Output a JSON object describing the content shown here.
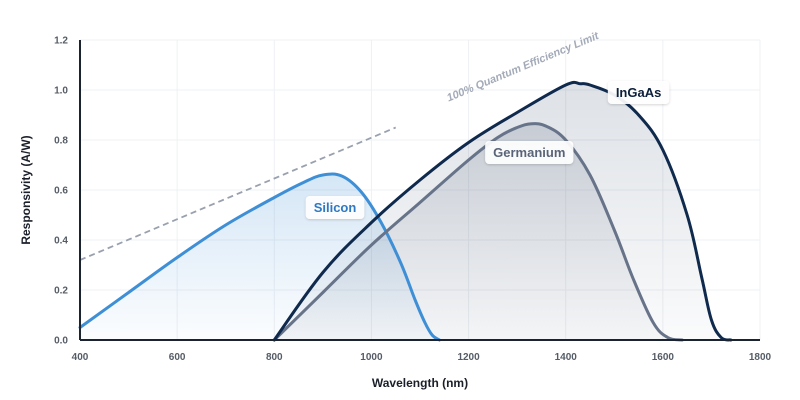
{
  "chart_data": {
    "type": "line",
    "xlabel": "Wavelength (nm)",
    "ylabel": "Responsivity (A/W)",
    "xlim": [
      400,
      1800
    ],
    "ylim": [
      0,
      1.2
    ],
    "x_ticks": [
      "400",
      "600",
      "800",
      "1000",
      "1200",
      "1400",
      "1600",
      "1800"
    ],
    "y_ticks": [
      "0.0",
      "0.2",
      "0.4",
      "0.6",
      "0.8",
      "1.0",
      "1.2"
    ],
    "grid": true,
    "reference_line": {
      "name": "100% Quantum Efficiency Limit",
      "color": "#9aa1ae",
      "x": [
        400,
        1050
      ],
      "y": [
        0.32,
        0.85
      ]
    },
    "series": [
      {
        "name": "Silicon",
        "color": "#3f8fd6",
        "label_color": "#2f78c2",
        "x": [
          400,
          500,
          600,
          700,
          800,
          860,
          900,
          940,
          980,
          1020,
          1060,
          1090,
          1110,
          1125,
          1140
        ],
        "y": [
          0.05,
          0.19,
          0.33,
          0.46,
          0.57,
          0.63,
          0.66,
          0.655,
          0.59,
          0.47,
          0.31,
          0.16,
          0.07,
          0.02,
          0.0
        ]
      },
      {
        "name": "Germanium",
        "color": "#677389",
        "label_color": "#5a6478",
        "x": [
          800,
          900,
          1000,
          1100,
          1200,
          1260,
          1300,
          1330,
          1360,
          1400,
          1450,
          1500,
          1540,
          1580,
          1610,
          1640
        ],
        "y": [
          0.0,
          0.19,
          0.38,
          0.55,
          0.72,
          0.81,
          0.85,
          0.865,
          0.855,
          0.8,
          0.66,
          0.44,
          0.24,
          0.07,
          0.01,
          0.0
        ]
      },
      {
        "name": "InGaAs",
        "color": "#0f2a4d",
        "label_color": "#0c1f3b",
        "x": [
          800,
          900,
          1000,
          1100,
          1200,
          1300,
          1400,
          1430,
          1450,
          1500,
          1550,
          1600,
          1650,
          1680,
          1700,
          1720,
          1740
        ],
        "y": [
          0.0,
          0.27,
          0.47,
          0.64,
          0.79,
          0.91,
          1.02,
          1.025,
          1.02,
          0.98,
          0.9,
          0.76,
          0.5,
          0.25,
          0.08,
          0.01,
          0.0
        ]
      }
    ]
  }
}
